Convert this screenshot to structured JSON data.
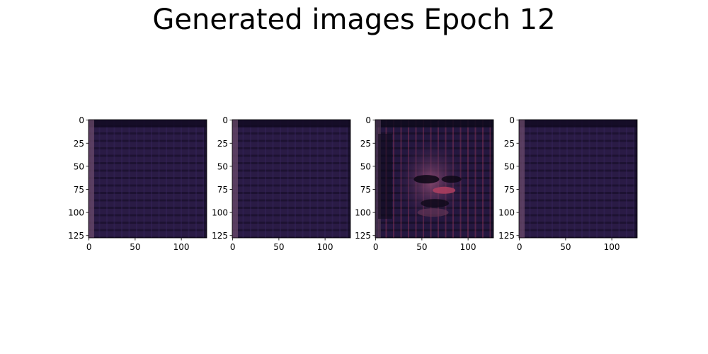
{
  "figure": {
    "title": "Generated images Epoch 12",
    "colors": {
      "frame": "#000000",
      "tick": "#000000",
      "background": "#ffffff"
    }
  },
  "chart_data": [
    {
      "type": "heatmap",
      "image_index": 1,
      "content": "near-uniform dark purple noise grid",
      "xlim": [
        0,
        127
      ],
      "ylim": [
        127,
        0
      ],
      "xticks": [
        0,
        50,
        100
      ],
      "yticks": [
        0,
        25,
        50,
        75,
        100,
        125
      ],
      "xtick_labels": [
        "0",
        "50",
        "100"
      ],
      "ytick_labels": [
        "0",
        "25",
        "50",
        "75",
        "100",
        "125"
      ],
      "palette": {
        "base": "#2a1b45",
        "dark_band": "#120b22",
        "light_edge": "#6a4a6a",
        "accent": "#3a2460"
      }
    },
    {
      "type": "heatmap",
      "image_index": 2,
      "content": "near-uniform dark purple noise grid",
      "xlim": [
        0,
        127
      ],
      "ylim": [
        127,
        0
      ],
      "xticks": [
        0,
        50,
        100
      ],
      "yticks": [
        0,
        25,
        50,
        75,
        100,
        125
      ],
      "xtick_labels": [
        "0",
        "50",
        "100"
      ],
      "ytick_labels": [
        "0",
        "25",
        "50",
        "75",
        "100",
        "125"
      ],
      "palette": {
        "base": "#2a1b45",
        "dark_band": "#120b22",
        "light_edge": "#6a4a6a",
        "accent": "#3a2460"
      }
    },
    {
      "type": "heatmap",
      "image_index": 3,
      "content": "blurry face-like pattern with pinkish-red highlights",
      "xlim": [
        0,
        127
      ],
      "ylim": [
        127,
        0
      ],
      "xticks": [
        0,
        50,
        100
      ],
      "yticks": [
        0,
        25,
        50,
        75,
        100,
        125
      ],
      "xtick_labels": [
        "0",
        "50",
        "100"
      ],
      "ytick_labels": [
        "0",
        "25",
        "50",
        "75",
        "100",
        "125"
      ],
      "palette": {
        "base": "#24173f",
        "dark_band": "#0e0a1c",
        "light_edge": "#4a3550",
        "accent": "#b04060"
      }
    },
    {
      "type": "heatmap",
      "image_index": 4,
      "content": "near-uniform dark purple noise grid",
      "xlim": [
        0,
        127
      ],
      "ylim": [
        127,
        0
      ],
      "xticks": [
        0,
        50,
        100
      ],
      "yticks": [
        0,
        25,
        50,
        75,
        100,
        125
      ],
      "xtick_labels": [
        "0",
        "50",
        "100"
      ],
      "ytick_labels": [
        "0",
        "25",
        "50",
        "75",
        "100",
        "125"
      ],
      "palette": {
        "base": "#2a1b45",
        "dark_band": "#120b22",
        "light_edge": "#6a4a6a",
        "accent": "#3a2460"
      }
    }
  ]
}
